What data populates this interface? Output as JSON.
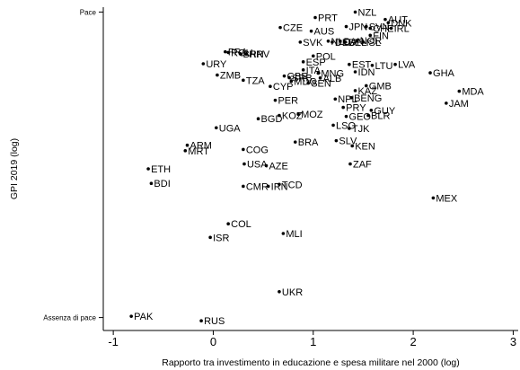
{
  "chart_data": {
    "type": "scatter",
    "title": "",
    "xlabel": "Rapporto tra investimento in educazione e spesa militare nel 2000 (log)",
    "ylabel": "GPI 2019 (log)",
    "xlim": [
      -1.1,
      3.05
    ],
    "ylim": [
      0,
      1
    ],
    "x_ticks": [
      -1,
      0,
      1,
      2,
      3
    ],
    "y_ticks": [
      {
        "value": 0.04,
        "label": "Assenza di pace"
      },
      {
        "value": 0.985,
        "label": "Pace"
      }
    ],
    "grid": false,
    "legend": "none",
    "points": [
      {
        "label": "NZL",
        "x": 1.42,
        "y": 0.985
      },
      {
        "label": "PRT",
        "x": 1.02,
        "y": 0.968
      },
      {
        "label": "AUT",
        "x": 1.72,
        "y": 0.962
      },
      {
        "label": "DNK",
        "x": 1.75,
        "y": 0.952
      },
      {
        "label": "JPN",
        "x": 1.33,
        "y": 0.94
      },
      {
        "label": "SVN",
        "x": 1.53,
        "y": 0.94
      },
      {
        "label": "CHE",
        "x": 1.57,
        "y": 0.935
      },
      {
        "label": "IRL",
        "x": 1.78,
        "y": 0.935
      },
      {
        "label": "CZE",
        "x": 0.67,
        "y": 0.937
      },
      {
        "label": "AUS",
        "x": 0.98,
        "y": 0.926
      },
      {
        "label": "FIN",
        "x": 1.57,
        "y": 0.913
      },
      {
        "label": "SVK",
        "x": 0.87,
        "y": 0.892
      },
      {
        "label": "NLD",
        "x": 1.15,
        "y": 0.895
      },
      {
        "label": "DEU",
        "x": 1.19,
        "y": 0.892
      },
      {
        "label": "CAN",
        "x": 1.27,
        "y": 0.895
      },
      {
        "label": "BEL",
        "x": 1.32,
        "y": 0.892
      },
      {
        "label": "NOR",
        "x": 1.44,
        "y": 0.897
      },
      {
        "label": "ISL",
        "x": 1.5,
        "y": 0.892
      },
      {
        "label": "FRA",
        "x": 0.12,
        "y": 0.862
      },
      {
        "label": "ROU",
        "x": 0.15,
        "y": 0.86
      },
      {
        "label": "HRV",
        "x": 0.33,
        "y": 0.855
      },
      {
        "label": "BRN",
        "x": 0.27,
        "y": 0.856
      },
      {
        "label": "POL",
        "x": 1.0,
        "y": 0.849
      },
      {
        "label": "URY",
        "x": -0.1,
        "y": 0.825
      },
      {
        "label": "ESP",
        "x": 0.9,
        "y": 0.831
      },
      {
        "label": "EST",
        "x": 1.36,
        "y": 0.823
      },
      {
        "label": "LTU",
        "x": 1.59,
        "y": 0.82
      },
      {
        "label": "LVA",
        "x": 1.82,
        "y": 0.823
      },
      {
        "label": "ITA",
        "x": 0.9,
        "y": 0.806
      },
      {
        "label": "MNG",
        "x": 1.05,
        "y": 0.796
      },
      {
        "label": "IDN",
        "x": 1.42,
        "y": 0.8
      },
      {
        "label": "GHA",
        "x": 2.17,
        "y": 0.797
      },
      {
        "label": "ZMB",
        "x": 0.04,
        "y": 0.79
      },
      {
        "label": "GBR",
        "x": 0.71,
        "y": 0.787
      },
      {
        "label": "SRB",
        "x": 0.76,
        "y": 0.782
      },
      {
        "label": "ALB",
        "x": 1.07,
        "y": 0.781
      },
      {
        "label": "TZA",
        "x": 0.3,
        "y": 0.774
      },
      {
        "label": "MDG",
        "x": 0.78,
        "y": 0.771
      },
      {
        "label": "SEN",
        "x": 0.95,
        "y": 0.765
      },
      {
        "label": "CYP",
        "x": 0.57,
        "y": 0.755
      },
      {
        "label": "GMB",
        "x": 1.53,
        "y": 0.757
      },
      {
        "label": "KAZ",
        "x": 1.42,
        "y": 0.742
      },
      {
        "label": "MDA",
        "x": 2.46,
        "y": 0.74
      },
      {
        "label": "NPL",
        "x": 1.22,
        "y": 0.716
      },
      {
        "label": "BENG",
        "x": 1.38,
        "y": 0.72
      },
      {
        "label": "PER",
        "x": 0.62,
        "y": 0.712
      },
      {
        "label": "PRY",
        "x": 1.3,
        "y": 0.69
      },
      {
        "label": "JAM",
        "x": 2.33,
        "y": 0.703
      },
      {
        "label": "GUY",
        "x": 1.58,
        "y": 0.681
      },
      {
        "label": "MOZ",
        "x": 0.85,
        "y": 0.669
      },
      {
        "label": "KOZ",
        "x": 0.66,
        "y": 0.665
      },
      {
        "label": "BGD",
        "x": 0.45,
        "y": 0.655
      },
      {
        "label": "GEO",
        "x": 1.33,
        "y": 0.662
      },
      {
        "label": "BLR",
        "x": 1.55,
        "y": 0.665
      },
      {
        "label": "LSO",
        "x": 1.2,
        "y": 0.635
      },
      {
        "label": "TJK",
        "x": 1.36,
        "y": 0.625
      },
      {
        "label": "UGA",
        "x": 0.03,
        "y": 0.627
      },
      {
        "label": "BRA",
        "x": 0.82,
        "y": 0.583
      },
      {
        "label": "SLV",
        "x": 1.23,
        "y": 0.587
      },
      {
        "label": "KEN",
        "x": 1.39,
        "y": 0.571
      },
      {
        "label": "ARM",
        "x": -0.26,
        "y": 0.573
      },
      {
        "label": "MRT",
        "x": -0.28,
        "y": 0.556
      },
      {
        "label": "COG",
        "x": 0.3,
        "y": 0.56
      },
      {
        "label": "USA",
        "x": 0.31,
        "y": 0.515
      },
      {
        "label": "AZE",
        "x": 0.53,
        "y": 0.51
      },
      {
        "label": "ZAF",
        "x": 1.37,
        "y": 0.515
      },
      {
        "label": "ETH",
        "x": -0.65,
        "y": 0.5
      },
      {
        "label": "BDI",
        "x": -0.62,
        "y": 0.455
      },
      {
        "label": "CMR",
        "x": 0.3,
        "y": 0.446
      },
      {
        "label": "IRN",
        "x": 0.55,
        "y": 0.446
      },
      {
        "label": "TCD",
        "x": 0.66,
        "y": 0.452
      },
      {
        "label": "MEX",
        "x": 2.2,
        "y": 0.41
      },
      {
        "label": "COL",
        "x": 0.15,
        "y": 0.33
      },
      {
        "label": "ISR",
        "x": -0.03,
        "y": 0.288
      },
      {
        "label": "MLI",
        "x": 0.7,
        "y": 0.3
      },
      {
        "label": "UKR",
        "x": 0.66,
        "y": 0.12
      },
      {
        "label": "PAK",
        "x": -0.82,
        "y": 0.044
      },
      {
        "label": "RUS",
        "x": -0.12,
        "y": 0.03
      }
    ]
  }
}
